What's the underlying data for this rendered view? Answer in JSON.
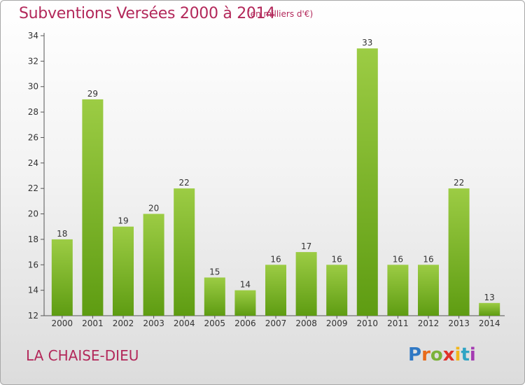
{
  "header": {
    "title": "Subventions Versées 2000 à 2014",
    "unit": "(en milliers d'€)"
  },
  "footer": {
    "commune": "LA CHAISE-DIEU",
    "logo": "Proxiti"
  },
  "colors": {
    "accent": "#b3285a",
    "bar_light": "#9ccc44",
    "bar_dark": "#5e9c12"
  },
  "chart_data": {
    "type": "bar",
    "categories": [
      "2000",
      "2001",
      "2002",
      "2003",
      "2004",
      "2005",
      "2006",
      "2007",
      "2008",
      "2009",
      "2010",
      "2011",
      "2012",
      "2013",
      "2014"
    ],
    "values": [
      18,
      29,
      19,
      20,
      22,
      15,
      14,
      16,
      17,
      16,
      33,
      16,
      16,
      22,
      13
    ],
    "title": "Subventions Versées 2000 à 2014",
    "ylim": [
      12,
      34
    ],
    "yticks": [
      12,
      14,
      16,
      18,
      20,
      22,
      24,
      26,
      28,
      30,
      32,
      34
    ],
    "grid": false,
    "legend": "none"
  }
}
